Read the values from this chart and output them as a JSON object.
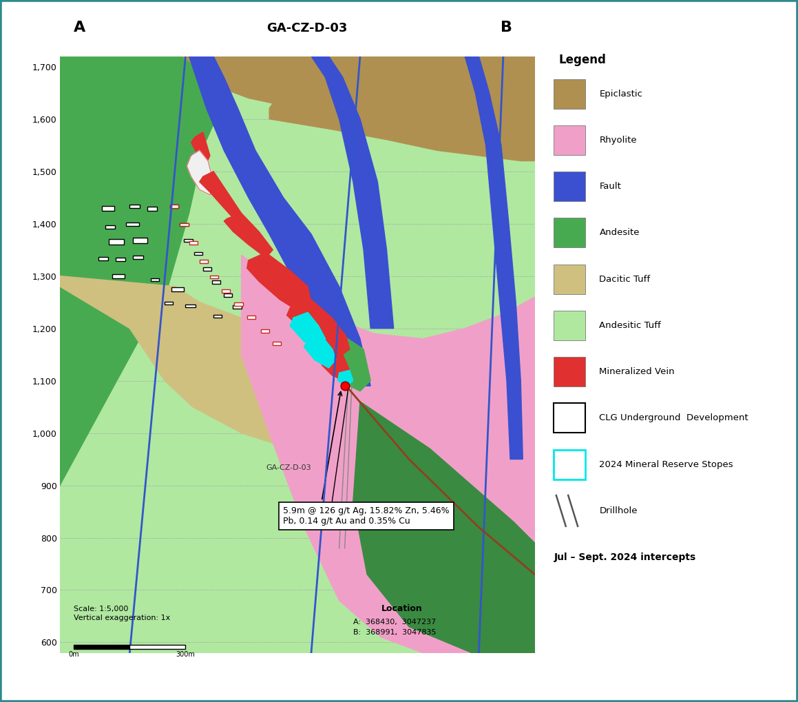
{
  "title": "GA-CZ-D-03",
  "label_A": "A",
  "label_B": "B",
  "bg_color": "#ffffff",
  "border_color": "#2e8b8b",
  "ylim": [
    580,
    1720
  ],
  "xlim": [
    0,
    680
  ],
  "yticks": [
    600,
    700,
    800,
    900,
    1000,
    1100,
    1200,
    1300,
    1400,
    1500,
    1600,
    1700
  ],
  "colors": {
    "epiclastic": "#b09050",
    "rhyolite": "#f0a0c8",
    "fault_blue": "#3a50d0",
    "andesite": "#48aa50",
    "andesite_dark": "#3a8a42",
    "dacitic_tuff": "#d0c080",
    "andesitic_tuff": "#b0e8a0",
    "mineralized_vein": "#e03030",
    "white_vein": "#f0f0f0",
    "cyan_stope": "#00e8e8",
    "brown_fault": "#904020",
    "grid": "#aaaaaa"
  },
  "intercept_text": "5.9m @ 126 g/t Ag, 15.82% Zn, 5.46%\nPb, 0.14 g/t Au and 0.35% Cu",
  "drillhole_label": "GA-CZ-D-03",
  "scale_text": "Scale: 1:5,000",
  "vert_exag_text": "Vertical exaggeration: 1x",
  "location_title": "Location",
  "location_A": "A:  368430,  3047237",
  "location_B": "B:  368991,  3047835"
}
